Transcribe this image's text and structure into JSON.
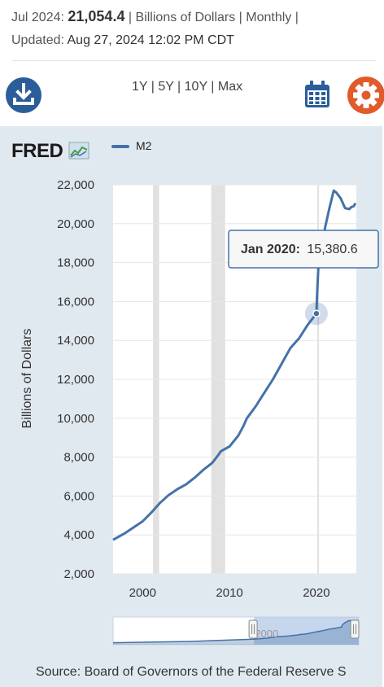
{
  "header": {
    "period": "Jul 2024:",
    "value": "21,054.4",
    "meta": "| Billions of Dollars | Monthly |",
    "updated_prefix": "Updated:",
    "updated": "Aug 27, 2024 12:02 PM CDT"
  },
  "toolbar": {
    "ranges": [
      "1Y",
      "5Y",
      "10Y",
      "Max"
    ],
    "separator": " | "
  },
  "logo": {
    "text": "FRED"
  },
  "source": "Source: Board of Governors of the Federal Reserve S",
  "tooltip": {
    "label": "Jan 2020:",
    "value": "15,380.6"
  },
  "colors": {
    "series": "#4572a7",
    "accent": "#e05a2c",
    "brand": "#2b5d9a"
  },
  "icons": {
    "download": "download-icon",
    "calendar": "calendar-icon",
    "settings": "gear-icon",
    "chart": "chart-icon"
  },
  "chart_data": {
    "type": "line",
    "ylabel": "Billions of Dollars",
    "xlabel": "",
    "ylim": [
      2000,
      22000
    ],
    "yticks": [
      "22,000",
      "20,000",
      "18,000",
      "16,000",
      "14,000",
      "12,000",
      "10,000",
      "8,000",
      "6,000",
      "4,000",
      "2,000"
    ],
    "xticks": [
      "2000",
      "2010",
      "2020"
    ],
    "xlim": [
      1996.6,
      2024.6
    ],
    "recessions": [
      [
        2001.2,
        2001.9
      ],
      [
        2007.9,
        2009.5
      ],
      [
        2020.1,
        2020.3
      ]
    ],
    "series": [
      {
        "name": "M2",
        "x": [
          1996.6,
          1998,
          2000,
          2001,
          2002,
          2003,
          2004,
          2005,
          2006,
          2007,
          2008,
          2008.7,
          2009,
          2010,
          2011,
          2011.6,
          2012,
          2013,
          2014,
          2015,
          2016,
          2017,
          2018,
          2019,
          2020.0,
          2020.1,
          2020.25,
          2020.5,
          2021,
          2021.5,
          2022,
          2022.3,
          2022.8,
          2023.3,
          2023.8,
          2024.0,
          2024.3,
          2024.5
        ],
        "values": [
          3750,
          4100,
          4700,
          5150,
          5650,
          6050,
          6350,
          6600,
          6950,
          7350,
          7700,
          8100,
          8300,
          8550,
          9100,
          9600,
          10000,
          10600,
          11300,
          12000,
          12800,
          13600,
          14100,
          14800,
          15380.6,
          16500,
          17900,
          18400,
          19800,
          20800,
          21700,
          21600,
          21300,
          20800,
          20750,
          20850,
          20900,
          21054.4
        ]
      }
    ],
    "navigator": {
      "label": "2000"
    }
  }
}
